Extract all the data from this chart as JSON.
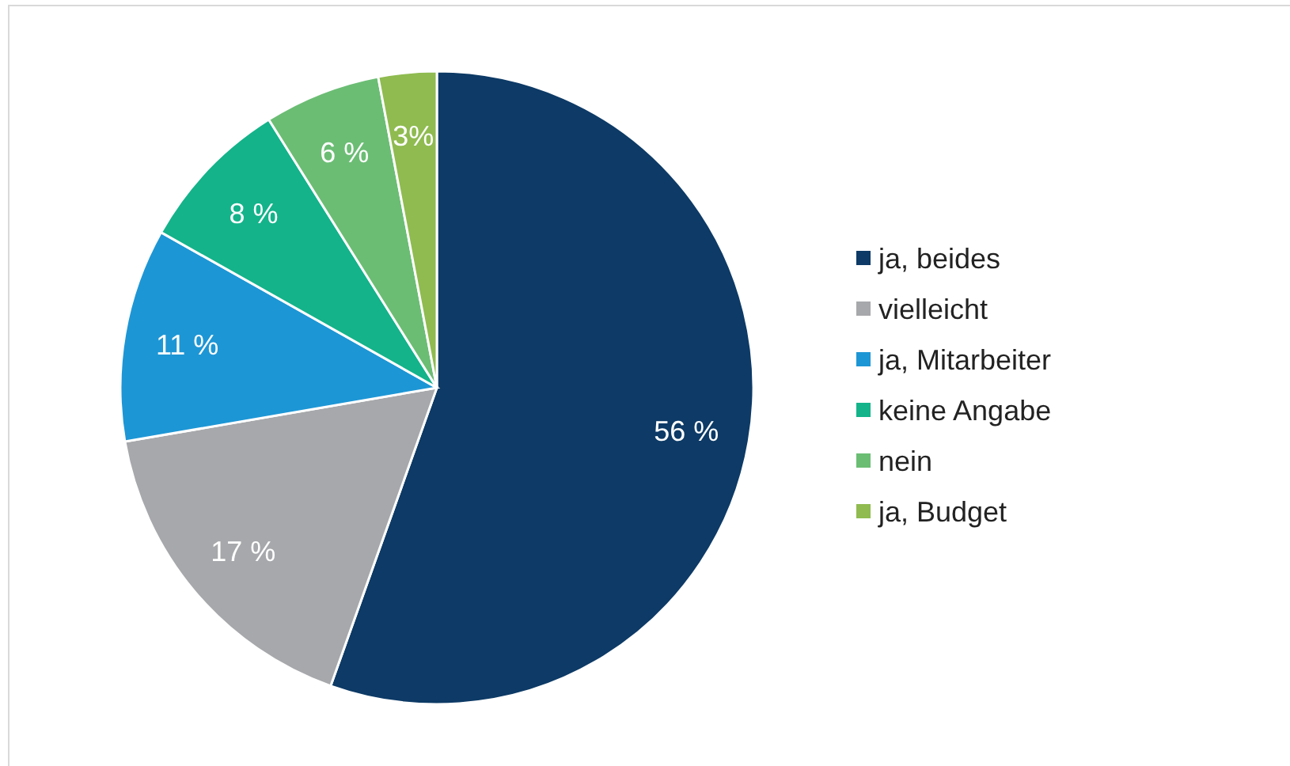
{
  "chart_data": {
    "type": "pie",
    "categories": [
      "ja, beides",
      "vielleicht",
      "ja, Mitarbeiter",
      "keine Angabe",
      "nein",
      "ja, Budget"
    ],
    "values": [
      56,
      17,
      11,
      8,
      6,
      3
    ],
    "colors": [
      "#0d3a66",
      "#a7a8ab",
      "#1d96d5",
      "#14b38a",
      "#6bbd74",
      "#8fbb50"
    ],
    "value_labels": [
      "56 %",
      "17 %",
      "11 %",
      "8 %",
      "6 %",
      "3%"
    ],
    "legend": "right"
  }
}
